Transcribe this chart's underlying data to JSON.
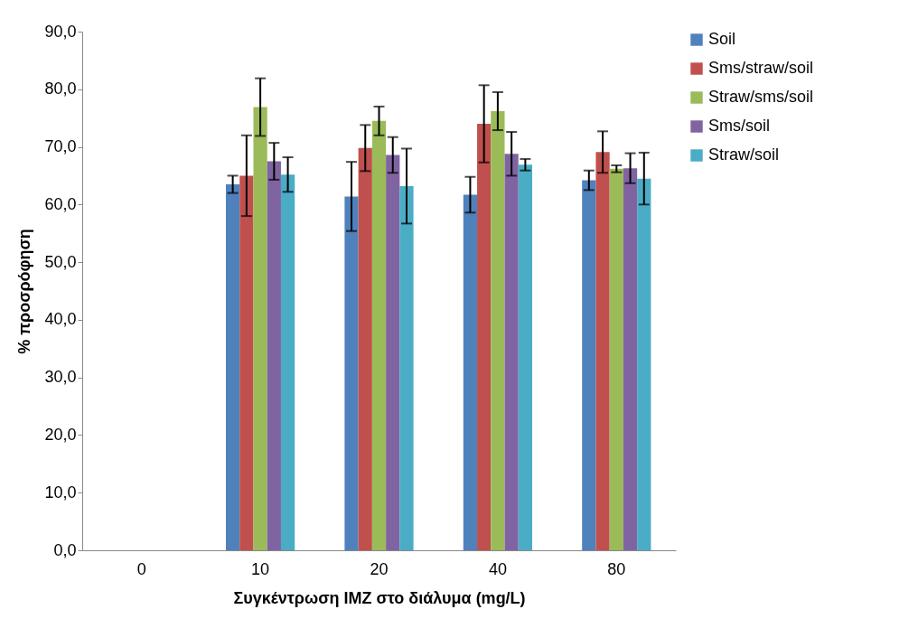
{
  "chart_data": {
    "type": "bar",
    "xlabel": "Συγκέντρωση IMZ στο διάλυμα (mg/L)",
    "ylabel": "% προσρόφηση",
    "categories": [
      "0",
      "10",
      "20",
      "40",
      "80"
    ],
    "series": [
      {
        "name": "Soil",
        "color": "#4f81bd",
        "values": [
          0,
          63.5,
          61.4,
          61.7,
          64.2
        ],
        "errors": [
          null,
          1.5,
          6,
          3.1,
          1.7
        ]
      },
      {
        "name": "Sms/straw/soil",
        "color": "#c0504d",
        "values": [
          0,
          65.0,
          69.8,
          74.0,
          69.1
        ],
        "errors": [
          null,
          7,
          4,
          6.7,
          3.6
        ]
      },
      {
        "name": "Straw/sms/soil",
        "color": "#9bbb59",
        "values": [
          0,
          76.9,
          74.5,
          76.2,
          66.2
        ],
        "errors": [
          null,
          5,
          2.5,
          3.3,
          0.6
        ]
      },
      {
        "name": "Sms/soil",
        "color": "#8064a2",
        "values": [
          0,
          67.5,
          68.6,
          68.8,
          66.3
        ],
        "errors": [
          null,
          3.2,
          3.1,
          3.8,
          2.6
        ]
      },
      {
        "name": "Straw/soil",
        "color": "#4bacc6",
        "values": [
          0,
          65.2,
          63.2,
          66.9,
          64.5
        ],
        "errors": [
          null,
          3,
          6.5,
          1,
          4.5
        ]
      }
    ],
    "ylim": [
      0,
      90
    ],
    "yticks": [
      {
        "value": 0,
        "label": "0,0"
      },
      {
        "value": 10,
        "label": "10,0"
      },
      {
        "value": 20,
        "label": "20,0"
      },
      {
        "value": 30,
        "label": "30,0"
      },
      {
        "value": 40,
        "label": "40,0"
      },
      {
        "value": 50,
        "label": "50,0"
      },
      {
        "value": 60,
        "label": "60,0"
      },
      {
        "value": 70,
        "label": "70,0"
      },
      {
        "value": 80,
        "label": "80,0"
      },
      {
        "value": 90,
        "label": "90,0"
      }
    ],
    "grid": false,
    "legend": "right"
  }
}
